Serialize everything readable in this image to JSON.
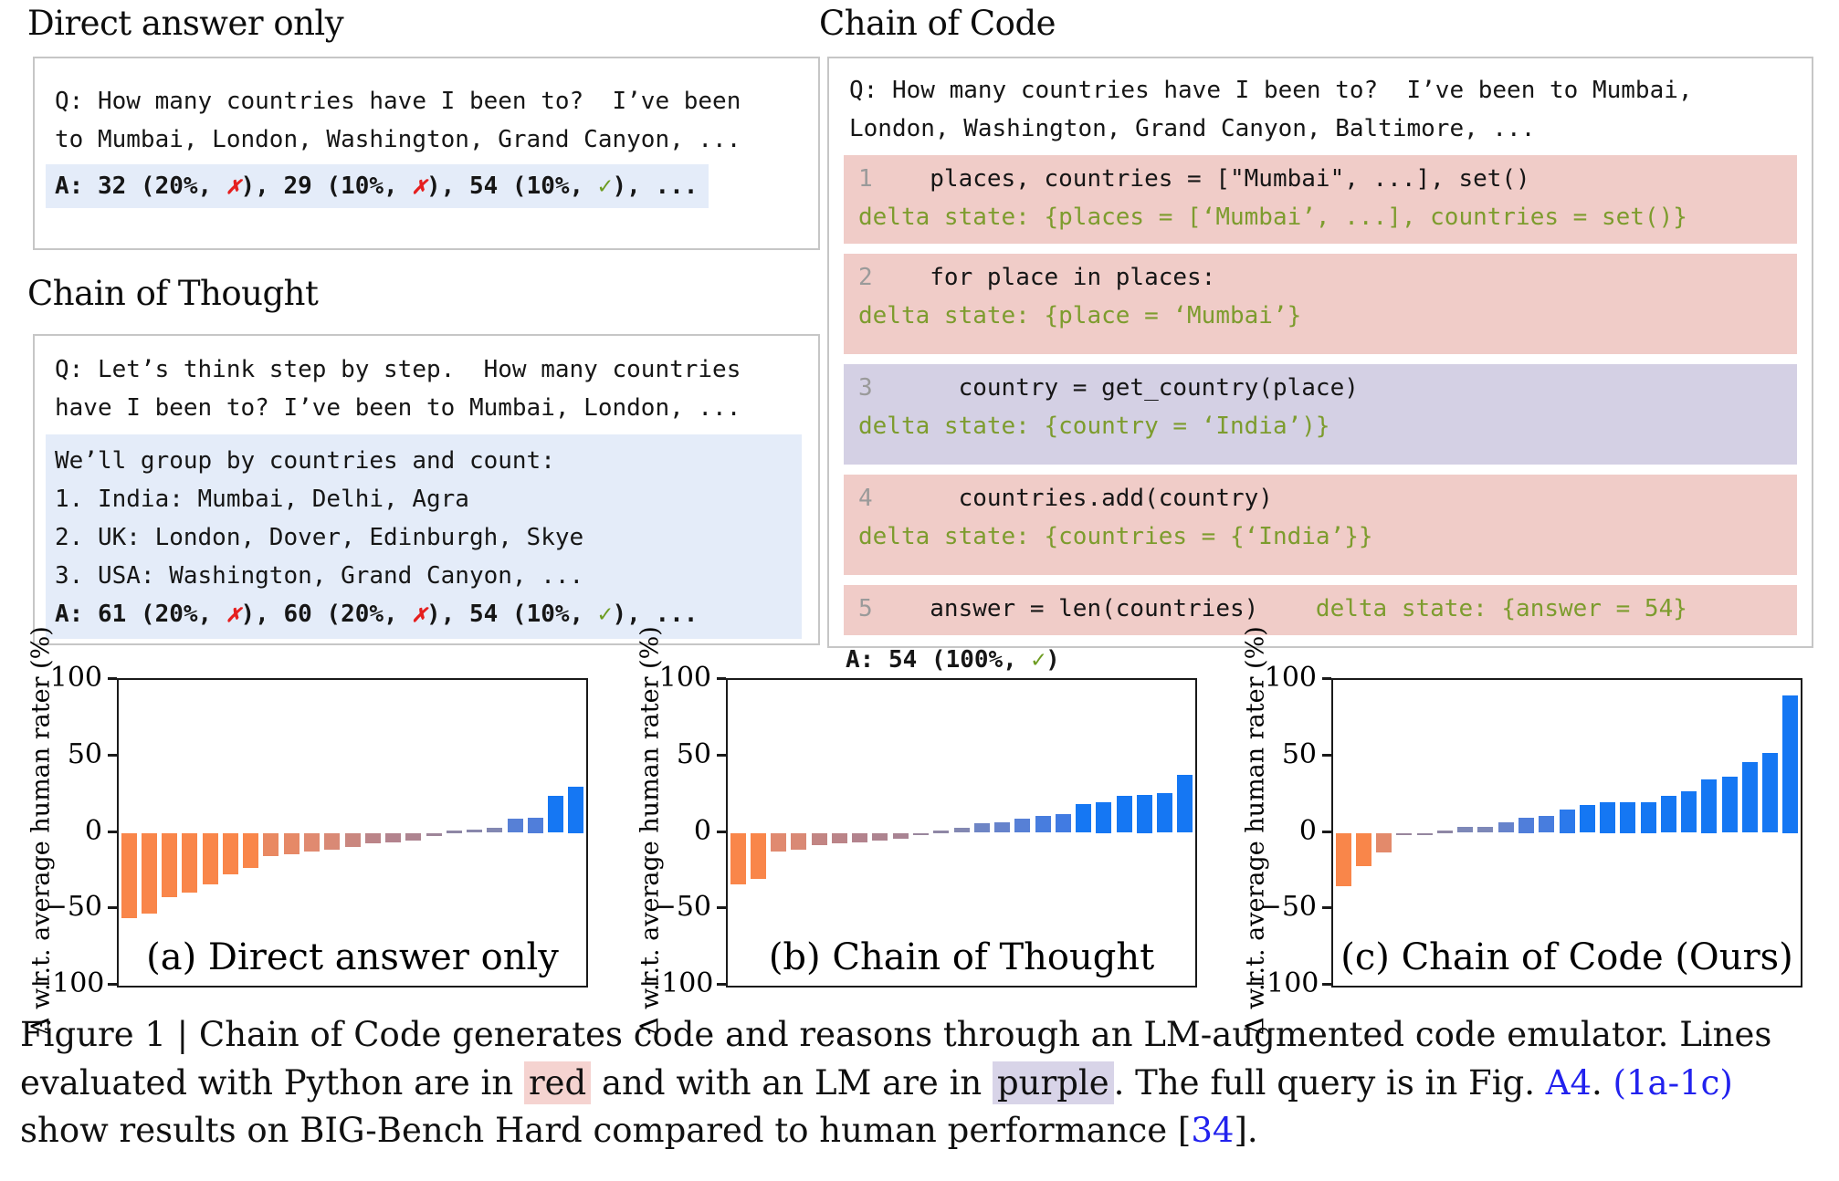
{
  "panels": {
    "direct": {
      "title": "Direct answer only",
      "q_lines": [
        "Q: How many countries have I been to?  I’ve been",
        "to Mumbai, London, Washington, Grand Canyon, ..."
      ],
      "answer_segments": [
        {
          "t": "A: 32 (20%, "
        },
        {
          "t": "✗",
          "c": "x"
        },
        {
          "t": "), 29 (10%, "
        },
        {
          "t": "✗",
          "c": "x"
        },
        {
          "t": "), 54 (10%, "
        },
        {
          "t": "✓",
          "c": "check"
        },
        {
          "t": "), ..."
        }
      ]
    },
    "cot": {
      "title": "Chain of Thought",
      "q_lines": [
        "Q: Let’s think step by step.  How many countries",
        "have I been to? I’ve been to Mumbai, London, ..."
      ],
      "reason_lines": [
        "We’ll group by countries and count:",
        "1. India: Mumbai, Delhi, Agra",
        "2. UK: London, Dover, Edinburgh, Skye",
        "3. USA: Washington, Grand Canyon, ..."
      ],
      "answer_segments": [
        {
          "t": "A: 61 (20%, "
        },
        {
          "t": "✗",
          "c": "x"
        },
        {
          "t": "), 60 (20%, "
        },
        {
          "t": "✗",
          "c": "x"
        },
        {
          "t": "), 54 (10%, "
        },
        {
          "t": "✓",
          "c": "check"
        },
        {
          "t": "), ..."
        }
      ]
    },
    "coc": {
      "title": "Chain of Code",
      "q_lines": [
        "Q: How many countries have I been to?  I’ve been to Mumbai,",
        "London, Washington, Grand Canyon, Baltimore, ..."
      ],
      "blocks": [
        {
          "bg": "python-red",
          "code": [
            {
              "t": "1",
              "c": "num"
            },
            {
              "t": "    places, countries = [\"Mumbai\", ...], set()"
            }
          ],
          "delta": "delta state: {places = [‘Mumbai’, ...], countries = set()}"
        },
        {
          "bg": "python-red",
          "code": [
            {
              "t": "2",
              "c": "num"
            },
            {
              "t": "    for place in places:"
            }
          ],
          "delta": "delta state: {place = ‘Mumbai’}"
        },
        {
          "bg": "lm-purple",
          "code": [
            {
              "t": "3",
              "c": "num"
            },
            {
              "t": "      country = get_country(place)"
            }
          ],
          "delta": "delta state: {country = ‘India’)}"
        },
        {
          "bg": "python-red",
          "code": [
            {
              "t": "4",
              "c": "num"
            },
            {
              "t": "      countries.add(country)"
            }
          ],
          "delta": "delta state: {countries = {‘India’}}"
        }
      ],
      "block5_segments": [
        {
          "t": "5",
          "c": "num"
        },
        {
          "t": "    answer = len(countries)"
        },
        {
          "t": "    delta state: {answer = 54}",
          "c": "delta"
        }
      ],
      "answer_segments": [
        {
          "t": "A: 54 (100%, "
        },
        {
          "t": "✓",
          "c": "check"
        },
        {
          "t": ")"
        }
      ]
    }
  },
  "chart_data": {
    "type": "bar",
    "ylabel": "Δ w.r.t. average human rater (%)",
    "ylim": [
      -100,
      100
    ],
    "yticks": [
      100,
      50,
      0,
      -50,
      -100
    ],
    "grid": false,
    "legend": "none",
    "charts": [
      {
        "label": "(a) Direct answer only",
        "values": [
          -56,
          -53,
          -42,
          -39,
          -34,
          -27,
          -23,
          -15,
          -14,
          -12,
          -11,
          -9,
          -7,
          -6,
          -5,
          -2,
          1,
          2,
          3,
          9,
          10,
          24,
          30
        ]
      },
      {
        "label": "(b) Chain of Thought",
        "values": [
          -34,
          -30,
          -12,
          -11,
          -8,
          -7,
          -6,
          -5,
          -4,
          -1,
          1,
          3,
          6,
          7,
          9,
          11,
          12,
          19,
          20,
          24,
          25,
          26,
          38
        ]
      },
      {
        "label": "(c) Chain of Code (Ours)",
        "values": [
          -35,
          -22,
          -13,
          -1,
          0,
          1,
          4,
          4,
          7,
          10,
          11,
          15,
          18,
          20,
          20,
          20,
          24,
          27,
          35,
          37,
          46,
          52,
          90
        ]
      }
    ],
    "bar_color_stops": [
      [
        -20,
        "#f9864a"
      ],
      [
        -12,
        "#e08a70"
      ],
      [
        -6,
        "#b3838d"
      ],
      [
        0,
        "#94869f"
      ],
      [
        4,
        "#7d88b8"
      ],
      [
        8,
        "#5e81d2"
      ],
      [
        13,
        "#3a7ae6"
      ],
      [
        18,
        "#1577f3"
      ]
    ]
  },
  "colors": {
    "python_red_bg": "#f0ccc8",
    "lm_purple_bg": "#d4d0e4",
    "answer_highlight_bg": "#e4ecf9",
    "delta_state_text": "#7d9c2e",
    "check_green": "#6d9c20",
    "cross_red": "#e51f1f",
    "link_blue": "#2222ee",
    "bar_orange": "#f9864a",
    "bar_blue": "#1577f3"
  },
  "caption": {
    "segments": [
      {
        "t": "Figure 1 | Chain of Code generates code and reasons through an LM-augmented code emulator. Lines evaluated with Python are in "
      },
      {
        "t": "red",
        "c": "hlred"
      },
      {
        "t": " and with an LM are in "
      },
      {
        "t": "purple",
        "c": "hlpurple"
      },
      {
        "t": ". The full query is in Fig. "
      },
      {
        "t": "A4",
        "c": "link",
        "n": "link-fig-a4",
        "i": true
      },
      {
        "t": ". "
      },
      {
        "t": "(1a-1c)",
        "c": "link",
        "n": "link-fig-1a-1c",
        "i": true
      },
      {
        "t": " show results on BIG-Bench Hard compared to human performance ["
      },
      {
        "t": "34",
        "c": "link",
        "n": "link-ref-34",
        "i": true
      },
      {
        "t": "]."
      }
    ]
  }
}
